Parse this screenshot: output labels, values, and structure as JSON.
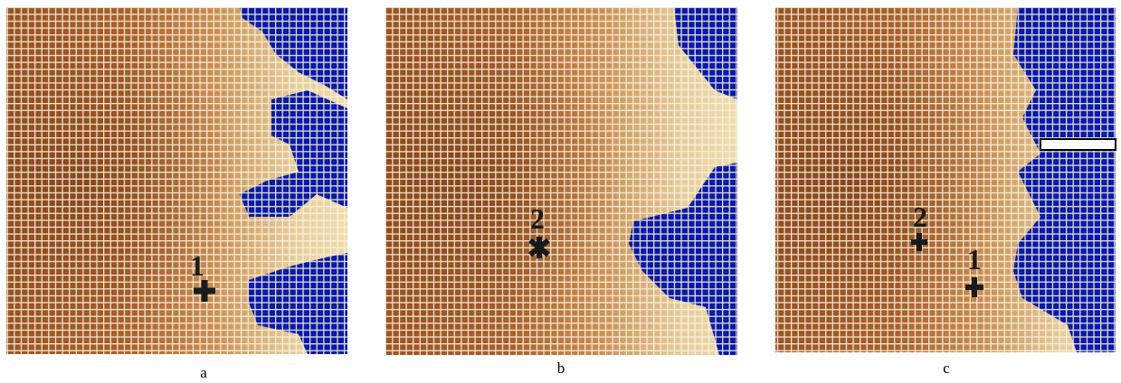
{
  "panels": [
    {
      "caption": "a",
      "markers": [
        {
          "label": "1"
        }
      ]
    },
    {
      "caption": "b",
      "markers": [
        {
          "label": "2"
        }
      ]
    },
    {
      "caption": "c",
      "markers": [
        {
          "label": "2"
        },
        {
          "label": "1"
        }
      ]
    }
  ]
}
